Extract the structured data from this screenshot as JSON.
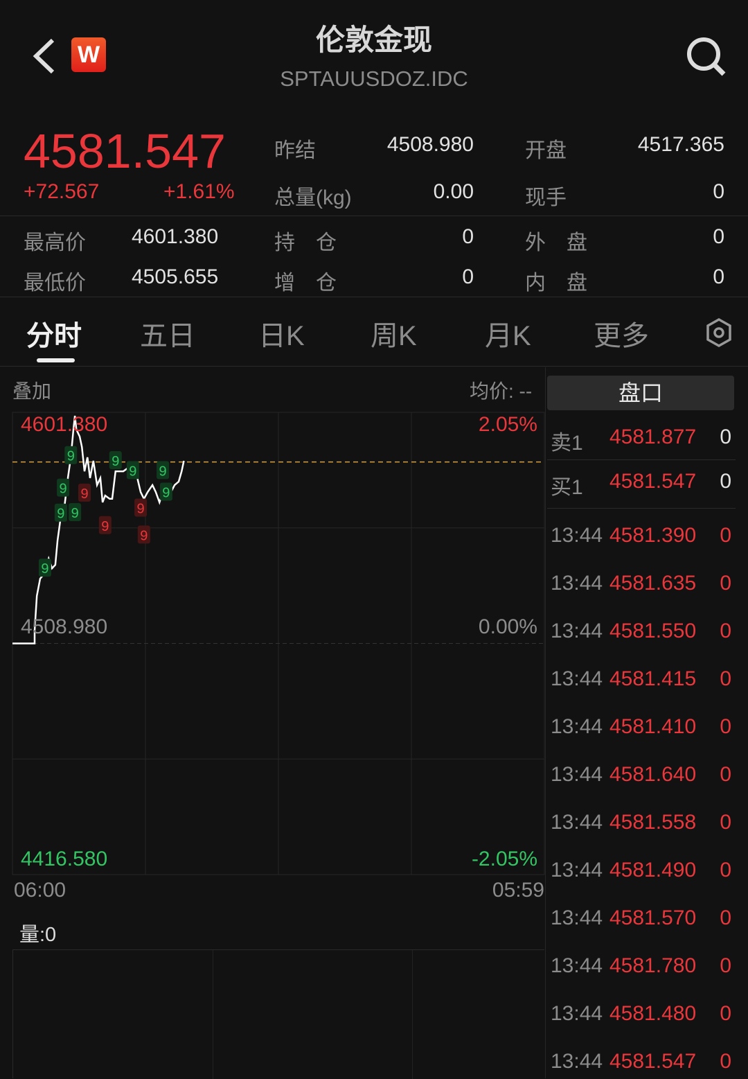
{
  "header": {
    "title": "伦敦金现",
    "code": "SPTAUUSDOZ.IDC",
    "badge": "W",
    "back_icon": "chevron-left-icon",
    "search_icon": "search-icon"
  },
  "quote": {
    "price": "4581.547",
    "change": "+72.567",
    "change_pct": "+1.61%",
    "prev_close_label": "昨结",
    "prev_close": "4508.980",
    "open_label": "开盘",
    "open": "4517.365",
    "volume_label": "总量(kg)",
    "volume": "0.00",
    "current_hand_label": "现手",
    "current_hand": "0",
    "high_label": "最高价",
    "high": "4601.380",
    "low_label": "最低价",
    "low": "4505.655",
    "position_label": "持　仓",
    "position": "0",
    "position_change_label": "增　仓",
    "position_change": "0",
    "outer_label": "外　盘",
    "outer": "0",
    "inner_label": "内　盘",
    "inner": "0"
  },
  "tabs": [
    {
      "label": "分时",
      "active": true
    },
    {
      "label": "五日"
    },
    {
      "label": "日K"
    },
    {
      "label": "周K"
    },
    {
      "label": "月K"
    },
    {
      "label": "更多"
    }
  ],
  "chart_toolbar": {
    "overlay_label": "叠加",
    "avg_label": "均价: --",
    "settings_icon": "hexagon-settings-icon"
  },
  "chart_data": {
    "type": "line",
    "ylim": [
      4416.58,
      4601.38
    ],
    "base": 4508.98,
    "current": 4581.547,
    "y_labels_left": {
      "top": "4601.380",
      "mid": "4508.980",
      "bottom": "4416.580"
    },
    "y_labels_right": {
      "top": "2.05%",
      "mid": "0.00%",
      "bottom": "-2.05%"
    },
    "x_labels": {
      "start": "06:00",
      "end": "05:59"
    },
    "colors": {
      "line": "#ffffff",
      "current_line": "#d9a040",
      "up": "#e9373c",
      "down": "#33c564"
    },
    "series": [
      [
        "06:00",
        4508.98
      ],
      [
        "07:00",
        4508.98
      ],
      [
        "07:00",
        4514.1
      ],
      [
        "07:06",
        4528.0
      ],
      [
        "07:15",
        4534.9
      ],
      [
        "07:23",
        4536.3
      ],
      [
        "07:28",
        4537.7
      ],
      [
        "07:38",
        4542.9
      ],
      [
        "07:47",
        4539.0
      ],
      [
        "07:56",
        4540.4
      ],
      [
        "08:02",
        4550.1
      ],
      [
        "08:11",
        4559.8
      ],
      [
        "08:21",
        4564.0
      ],
      [
        "08:30",
        4575.1
      ],
      [
        "08:38",
        4583.4
      ],
      [
        "08:45",
        4594.5
      ],
      [
        "08:49",
        4600.0
      ],
      [
        "08:53",
        4594.5
      ],
      [
        "09:02",
        4591.7
      ],
      [
        "09:08",
        4587.5
      ],
      [
        "09:15",
        4577.8
      ],
      [
        "09:23",
        4583.4
      ],
      [
        "09:30",
        4575.1
      ],
      [
        "09:39",
        4582.0
      ],
      [
        "09:49",
        4572.3
      ],
      [
        "09:58",
        4575.1
      ],
      [
        "10:04",
        4565.4
      ],
      [
        "10:11",
        4568.1
      ],
      [
        "10:23",
        4566.8
      ],
      [
        "10:30",
        4566.8
      ],
      [
        "10:39",
        4577.8
      ],
      [
        "10:49",
        4577.8
      ],
      [
        "11:00",
        4577.8
      ],
      [
        "11:13",
        4579.2
      ],
      [
        "11:26",
        4577.8
      ],
      [
        "11:38",
        4575.1
      ],
      [
        "11:47",
        4569.5
      ],
      [
        "11:56",
        4566.8
      ],
      [
        "12:06",
        4569.5
      ],
      [
        "12:19",
        4572.3
      ],
      [
        "12:28",
        4569.5
      ],
      [
        "12:38",
        4565.4
      ],
      [
        "12:47",
        4569.5
      ],
      [
        "12:56",
        4568.1
      ],
      [
        "13:09",
        4569.5
      ],
      [
        "13:19",
        4572.3
      ],
      [
        "13:30",
        4573.7
      ],
      [
        "13:38",
        4577.8
      ],
      [
        "13:44",
        4582.0
      ]
    ],
    "markers": [
      {
        "time": "07:28",
        "price": 4539,
        "label": "9",
        "color": "green"
      },
      {
        "time": "08:11",
        "price": 4561,
        "label": "9",
        "color": "green"
      },
      {
        "time": "08:17",
        "price": 4571,
        "label": "9",
        "color": "green"
      },
      {
        "time": "08:38",
        "price": 4584,
        "label": "9",
        "color": "green"
      },
      {
        "time": "08:49",
        "price": 4600,
        "label": "9",
        "color": "green"
      },
      {
        "time": "09:15",
        "price": 4569,
        "label": "9",
        "color": "red"
      },
      {
        "time": "10:11",
        "price": 4556,
        "label": "9",
        "color": "red"
      },
      {
        "time": "10:39",
        "price": 4582,
        "label": "9",
        "color": "green"
      },
      {
        "time": "11:26",
        "price": 4578,
        "label": "9",
        "color": "green"
      },
      {
        "time": "11:47",
        "price": 4563,
        "label": "9",
        "color": "red"
      },
      {
        "time": "11:56",
        "price": 4560,
        "label": "9",
        "color": "red"
      },
      {
        "time": "12:47",
        "price": 4578,
        "label": "9",
        "color": "green"
      },
      {
        "time": "12:56",
        "price": 4581,
        "label": "9",
        "color": "green"
      }
    ]
  },
  "volume": {
    "label": "量:0"
  },
  "orderbook": {
    "title": "盘口",
    "sell": {
      "label": "卖1",
      "price": "4581.877",
      "qty": "0"
    },
    "buy": {
      "label": "买1",
      "price": "4581.547",
      "qty": "0"
    },
    "ticks": [
      {
        "time": "13:44",
        "price": "4581.390",
        "qty": "0"
      },
      {
        "time": "13:44",
        "price": "4581.635",
        "qty": "0"
      },
      {
        "time": "13:44",
        "price": "4581.550",
        "qty": "0"
      },
      {
        "time": "13:44",
        "price": "4581.415",
        "qty": "0"
      },
      {
        "time": "13:44",
        "price": "4581.410",
        "qty": "0"
      },
      {
        "time": "13:44",
        "price": "4581.640",
        "qty": "0"
      },
      {
        "time": "13:44",
        "price": "4581.558",
        "qty": "0"
      },
      {
        "time": "13:44",
        "price": "4581.490",
        "qty": "0"
      },
      {
        "time": "13:44",
        "price": "4581.570",
        "qty": "0"
      },
      {
        "time": "13:44",
        "price": "4581.780",
        "qty": "0"
      },
      {
        "time": "13:44",
        "price": "4581.480",
        "qty": "0"
      },
      {
        "time": "13:44",
        "price": "4581.547",
        "qty": "0"
      }
    ]
  }
}
